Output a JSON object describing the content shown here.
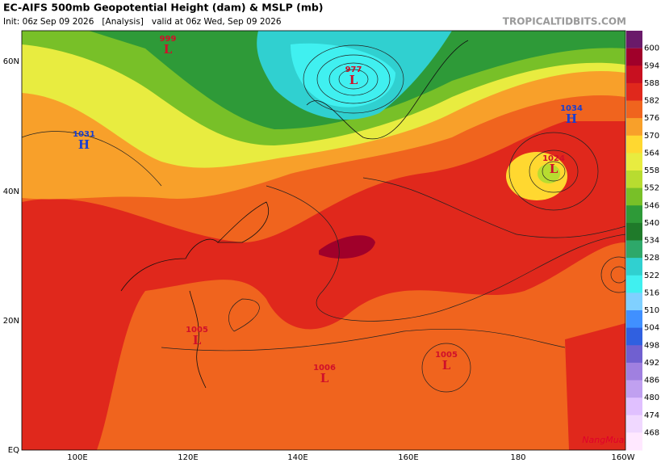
{
  "header": {
    "title": "EC-AIFS 500mb Geopotential Height (dam) & MSLP (mb)",
    "subtitle": "Init: 06z Sep 09 2026   [Analysis]   valid at 06z Wed, Sep 09 2026",
    "site": "TROPICALTIDBITS.COM"
  },
  "map": {
    "lat_labels": [
      "60N",
      "40N",
      "20N",
      "EQ"
    ],
    "lon_labels": [
      "100E",
      "120E",
      "140E",
      "160E",
      "180",
      "160W"
    ],
    "centers": [
      {
        "value": "999",
        "letter": "L"
      },
      {
        "value": "1031",
        "letter": "H"
      },
      {
        "value": "977",
        "letter": "L"
      },
      {
        "value": "1034",
        "letter": "H"
      },
      {
        "value": "1024",
        "letter": "L"
      },
      {
        "value": "1005",
        "letter": "L"
      },
      {
        "value": "1006",
        "letter": "L"
      },
      {
        "value": "1005",
        "letter": "L"
      }
    ],
    "watermark": "NangMua.VN"
  },
  "colorbar": {
    "top_color": "#6a1a6a",
    "levels": [
      {
        "label": "600",
        "color": "#a0002a"
      },
      {
        "label": "594",
        "color": "#c81020"
      },
      {
        "label": "588",
        "color": "#e0281c"
      },
      {
        "label": "582",
        "color": "#f0641e"
      },
      {
        "label": "576",
        "color": "#f8a02a"
      },
      {
        "label": "570",
        "color": "#ffd830"
      },
      {
        "label": "564",
        "color": "#e8ec40"
      },
      {
        "label": "558",
        "color": "#b8dc30"
      },
      {
        "label": "552",
        "color": "#78c028"
      },
      {
        "label": "546",
        "color": "#2e9a38"
      },
      {
        "label": "540",
        "color": "#1f7a2a"
      },
      {
        "label": "534",
        "color": "#2ea86a"
      },
      {
        "label": "528",
        "color": "#30d0d0"
      },
      {
        "label": "522",
        "color": "#40f0f0"
      },
      {
        "label": "516",
        "color": "#80d0ff"
      },
      {
        "label": "510",
        "color": "#4090ff"
      },
      {
        "label": "504",
        "color": "#3060e0"
      },
      {
        "label": "498",
        "color": "#7060d0"
      },
      {
        "label": "492",
        "color": "#a080e0"
      },
      {
        "label": "486",
        "color": "#c0a0f0"
      },
      {
        "label": "480",
        "color": "#e0c0ff"
      },
      {
        "label": "474",
        "color": "#f0d8ff"
      },
      {
        "label": "468",
        "color": "#ffe8ff"
      }
    ]
  }
}
